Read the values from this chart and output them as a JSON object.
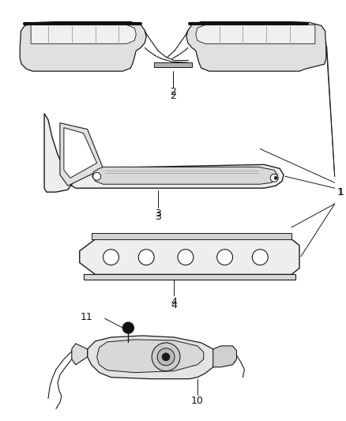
{
  "background_color": "#ffffff",
  "line_color": "#1a1a1a",
  "dark_color": "#111111",
  "gray_light": "#e0e0e0",
  "gray_mid": "#c0c0c0"
}
